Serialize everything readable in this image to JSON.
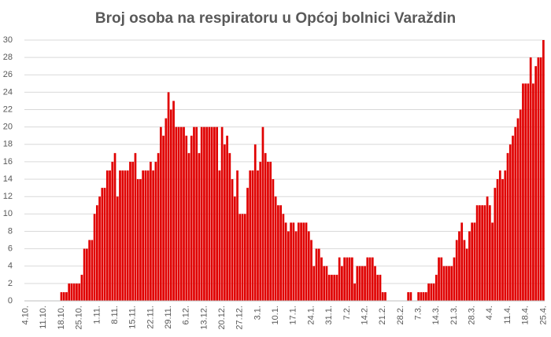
{
  "chart_data": {
    "type": "bar",
    "title": "Broj osoba na respiratoru u Općoj bolnici Varaždin",
    "categories": [
      "4.10.",
      null,
      null,
      null,
      null,
      null,
      null,
      "11.10.",
      null,
      null,
      null,
      null,
      null,
      null,
      "18.10.",
      null,
      null,
      null,
      null,
      null,
      null,
      "25.10.",
      null,
      null,
      null,
      null,
      null,
      null,
      "1.11.",
      null,
      null,
      null,
      null,
      null,
      null,
      "8.11.",
      null,
      null,
      null,
      null,
      null,
      null,
      "15.11.",
      null,
      null,
      null,
      null,
      null,
      null,
      "22.11.",
      null,
      null,
      null,
      null,
      null,
      null,
      "29.11.",
      null,
      null,
      null,
      null,
      null,
      null,
      "6.12.",
      null,
      null,
      null,
      null,
      null,
      null,
      "13.12.",
      null,
      null,
      null,
      null,
      null,
      null,
      "20.12.",
      null,
      null,
      null,
      null,
      null,
      null,
      "27.12.",
      null,
      null,
      null,
      null,
      null,
      null,
      "3.1.",
      null,
      null,
      null,
      null,
      null,
      null,
      "10.1.",
      null,
      null,
      null,
      null,
      null,
      null,
      "17.1.",
      null,
      null,
      null,
      null,
      null,
      null,
      "24.1.",
      null,
      null,
      null,
      null,
      null,
      null,
      "31.1.",
      null,
      null,
      null,
      null,
      null,
      null,
      "7.2.",
      null,
      null,
      null,
      null,
      null,
      null,
      "14.2.",
      null,
      null,
      null,
      null,
      null,
      null,
      "21.2.",
      null,
      null,
      null,
      null,
      null,
      null,
      "28.2.",
      null,
      null,
      null,
      null,
      null,
      null,
      "7.3.",
      null,
      null,
      null,
      null,
      null,
      null,
      "14.3.",
      null,
      null,
      null,
      null,
      null,
      null,
      "21.3.",
      null,
      null,
      null,
      null,
      null,
      null,
      "28.3.",
      null,
      null,
      null,
      null,
      null,
      null,
      "4.4.",
      null,
      null,
      null,
      null,
      null,
      null,
      "11.4.",
      null,
      null,
      null,
      null,
      null,
      null,
      "18.4.",
      null,
      null,
      null,
      null,
      null,
      null,
      "25.4."
    ],
    "values": [
      0,
      0,
      0,
      0,
      0,
      0,
      0,
      0,
      0,
      0,
      0,
      0,
      0,
      0,
      1,
      1,
      1,
      2,
      2,
      2,
      2,
      2,
      3,
      6,
      6,
      7,
      7,
      10,
      11,
      12,
      13,
      13,
      15,
      15,
      16,
      17,
      12,
      15,
      15,
      15,
      15,
      16,
      16,
      17,
      14,
      14,
      15,
      15,
      15,
      16,
      15,
      16,
      17,
      20,
      19,
      21,
      24,
      22,
      23,
      20,
      20,
      20,
      20,
      19,
      17,
      19,
      20,
      20,
      17,
      20,
      20,
      20,
      20,
      20,
      20,
      20,
      15,
      20,
      18,
      19,
      17,
      14,
      12,
      15,
      10,
      10,
      10,
      13,
      15,
      15,
      18,
      15,
      16,
      20,
      17,
      16,
      16,
      14,
      12,
      11,
      11,
      10,
      9,
      8,
      9,
      9,
      8,
      9,
      9,
      9,
      9,
      8,
      7,
      4,
      6,
      6,
      5,
      4,
      4,
      3,
      3,
      3,
      3,
      5,
      4,
      5,
      5,
      5,
      5,
      2,
      4,
      4,
      4,
      4,
      5,
      5,
      5,
      4,
      3,
      3,
      1,
      1,
      0,
      0,
      0,
      0,
      0,
      0,
      0,
      0,
      1,
      1,
      0,
      0,
      1,
      1,
      1,
      1,
      2,
      2,
      2,
      3,
      5,
      5,
      4,
      4,
      4,
      4,
      5,
      7,
      8,
      9,
      7,
      6,
      8,
      9,
      9,
      11,
      11,
      11,
      11,
      12,
      11,
      9,
      13,
      14,
      15,
      14,
      15,
      17,
      18,
      19,
      20,
      21,
      22,
      25,
      25,
      25,
      28,
      25,
      27,
      28,
      28,
      30
    ],
    "color": "#e00000",
    "ylim": [
      0,
      30
    ],
    "yticks": [
      0,
      2,
      4,
      6,
      8,
      10,
      12,
      14,
      16,
      18,
      20,
      22,
      24,
      26,
      28,
      30
    ],
    "grid": true
  }
}
